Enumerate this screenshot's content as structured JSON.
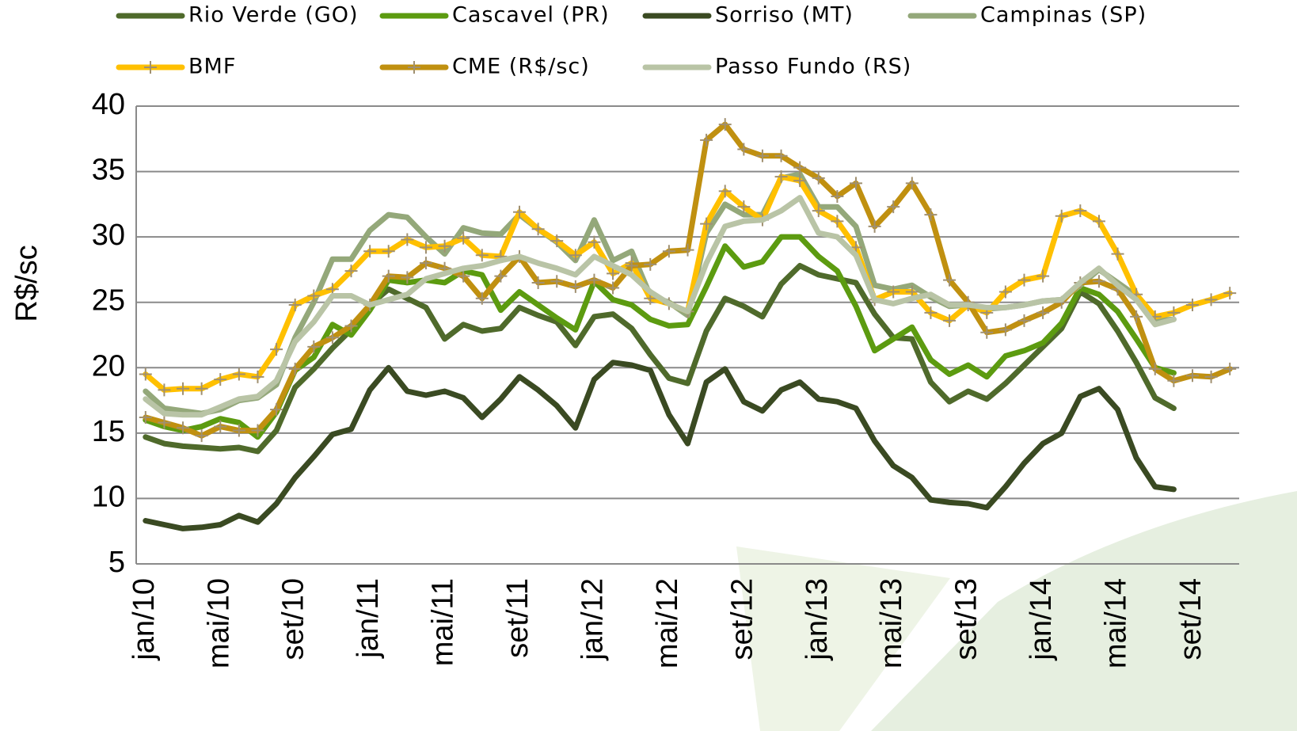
{
  "chart_data": {
    "type": "line",
    "y_label": "R$/sc",
    "categories": [
      "jan/10",
      null,
      null,
      null,
      "mai/10",
      null,
      null,
      null,
      "set/10",
      null,
      null,
      null,
      "jan/11",
      null,
      null,
      null,
      "mai/11",
      null,
      null,
      null,
      "set/11",
      null,
      null,
      null,
      "jan/12",
      null,
      null,
      null,
      "mai/12",
      null,
      null,
      null,
      "set/12",
      null,
      null,
      null,
      "jan/13",
      null,
      null,
      null,
      "mai/13",
      null,
      null,
      null,
      "set/13",
      null,
      null,
      null,
      "jan/14",
      null,
      null,
      null,
      "mai/14",
      null,
      null,
      null,
      "set/14",
      null,
      null
    ],
    "ylim": [
      5,
      40
    ],
    "yticks": [
      5,
      10,
      15,
      20,
      25,
      30,
      35,
      40
    ],
    "grid": true,
    "series": [
      {
        "name": "Rio Verde (GO)",
        "color": "#4f6a2b",
        "values": [
          14.7,
          14.2,
          14.0,
          13.9,
          13.8,
          13.9,
          13.6,
          15.2,
          18.5,
          19.9,
          21.5,
          22.9,
          24.8,
          26.0,
          25.3,
          24.6,
          22.2,
          23.3,
          22.8,
          23.0,
          24.6,
          24.0,
          23.5,
          21.7,
          23.9,
          24.1,
          23.0,
          21.0,
          19.2,
          18.8,
          22.8,
          25.3,
          24.7,
          23.9,
          26.4,
          27.8,
          27.1,
          26.8,
          26.5,
          24.1,
          22.3,
          22.2,
          18.9,
          17.4,
          18.2,
          17.6,
          18.8,
          20.2,
          21.6,
          23.0,
          25.8,
          24.9,
          22.8,
          20.4,
          17.7,
          16.9,
          null,
          null,
          null
        ]
      },
      {
        "name": "Cascavel (PR)",
        "color": "#5c9b10",
        "values": [
          16.0,
          15.5,
          15.2,
          15.5,
          16.1,
          15.8,
          14.7,
          16.6,
          19.8,
          20.8,
          23.3,
          22.5,
          24.4,
          26.7,
          26.5,
          26.7,
          26.5,
          27.4,
          27.1,
          24.4,
          25.8,
          24.8,
          23.8,
          22.9,
          26.6,
          25.2,
          24.8,
          23.7,
          23.2,
          23.3,
          26.2,
          29.3,
          27.7,
          28.1,
          30.0,
          30.0,
          28.5,
          27.4,
          24.7,
          21.3,
          22.2,
          23.1,
          20.6,
          19.5,
          20.2,
          19.3,
          20.9,
          21.3,
          21.9,
          23.4,
          26.1,
          25.6,
          24.3,
          22.2,
          20.0,
          19.6,
          null,
          null,
          null
        ]
      },
      {
        "name": "Sorriso (MT)",
        "color": "#3a4a22",
        "values": [
          8.3,
          8.0,
          7.7,
          7.8,
          8.0,
          8.7,
          8.2,
          9.6,
          11.6,
          13.2,
          14.9,
          15.3,
          18.3,
          20.0,
          18.2,
          17.9,
          18.2,
          17.7,
          16.2,
          17.6,
          19.3,
          18.3,
          17.1,
          15.4,
          19.1,
          20.4,
          20.2,
          19.8,
          16.4,
          14.2,
          18.9,
          19.9,
          17.4,
          16.7,
          18.3,
          18.9,
          17.6,
          17.4,
          16.9,
          14.4,
          12.5,
          11.6,
          9.9,
          9.7,
          9.6,
          9.3,
          10.9,
          12.7,
          14.2,
          15.0,
          17.8,
          18.4,
          16.8,
          13.1,
          10.9,
          10.7,
          null,
          null,
          null
        ]
      },
      {
        "name": "Campinas (SP)",
        "color": "#94a87a",
        "values": [
          18.2,
          16.9,
          16.7,
          16.5,
          16.8,
          17.5,
          17.7,
          18.7,
          22.3,
          25.0,
          28.3,
          28.3,
          30.5,
          31.7,
          31.5,
          30.0,
          28.7,
          30.7,
          30.3,
          30.2,
          31.7,
          30.6,
          29.6,
          28.2,
          31.3,
          28.2,
          28.9,
          25.5,
          25.0,
          24.0,
          30.3,
          32.5,
          31.7,
          31.7,
          34.5,
          34.8,
          32.3,
          32.3,
          30.8,
          26.3,
          26.0,
          26.3,
          25.4,
          24.7,
          24.8,
          24.5,
          24.6,
          24.8,
          25.1,
          25.2,
          26.3,
          27.5,
          26.5,
          25.5,
          23.6,
          23.7,
          null,
          null,
          null
        ]
      },
      {
        "name": "BMF",
        "color": "#ffc000",
        "marker": "plus",
        "values": [
          19.5,
          18.3,
          18.4,
          18.4,
          19.1,
          19.5,
          19.3,
          21.4,
          24.8,
          25.5,
          26.0,
          27.4,
          28.9,
          28.9,
          29.8,
          29.2,
          29.3,
          29.9,
          28.6,
          28.5,
          31.9,
          30.6,
          29.7,
          28.6,
          29.6,
          27.2,
          28.0,
          25.3,
          24.9,
          24.3,
          31.0,
          33.5,
          32.3,
          31.3,
          34.6,
          34.3,
          32.0,
          31.2,
          29.2,
          25.2,
          25.8,
          25.8,
          24.2,
          23.6,
          24.8,
          24.2,
          25.8,
          26.7,
          27.0,
          31.6,
          32.0,
          31.2,
          28.7,
          25.6,
          23.9,
          24.2,
          24.8,
          25.2,
          25.7
        ]
      },
      {
        "name": "CME (R$/sc)",
        "color": "#c09010",
        "marker": "plus",
        "values": [
          16.2,
          15.8,
          15.4,
          14.8,
          15.5,
          15.2,
          15.2,
          16.8,
          19.9,
          21.6,
          22.3,
          23.2,
          24.8,
          27.0,
          26.9,
          28.0,
          27.6,
          27.0,
          25.3,
          27.0,
          28.5,
          26.5,
          26.6,
          26.2,
          26.7,
          26.1,
          27.8,
          27.9,
          28.9,
          29.0,
          37.4,
          38.6,
          36.7,
          36.2,
          36.2,
          35.3,
          34.5,
          33.1,
          34.1,
          30.8,
          32.3,
          34.1,
          31.7,
          26.7,
          25.0,
          22.7,
          22.9,
          23.6,
          24.2,
          25.0,
          26.5,
          26.6,
          26.0,
          23.9,
          19.9,
          19.0,
          19.4,
          19.3,
          19.9
        ]
      },
      {
        "name": "Passo Fundo (RS)",
        "color": "#b9c4a6",
        "values": [
          17.6,
          16.5,
          16.4,
          16.4,
          17.0,
          17.6,
          17.8,
          19.0,
          22.0,
          23.5,
          25.5,
          25.5,
          24.8,
          25.2,
          25.6,
          26.8,
          27.2,
          27.6,
          27.8,
          28.2,
          28.5,
          28.0,
          27.6,
          27.1,
          28.5,
          27.8,
          27.1,
          25.8,
          24.9,
          24.3,
          28.0,
          30.8,
          31.2,
          31.3,
          32.0,
          33.0,
          30.3,
          30.0,
          28.6,
          25.2,
          24.9,
          25.3,
          25.6,
          24.8,
          24.8,
          24.6,
          24.6,
          24.8,
          25.1,
          25.2,
          26.5,
          27.6,
          26.3,
          25.2,
          23.3,
          23.7,
          null,
          null,
          null
        ]
      }
    ]
  }
}
